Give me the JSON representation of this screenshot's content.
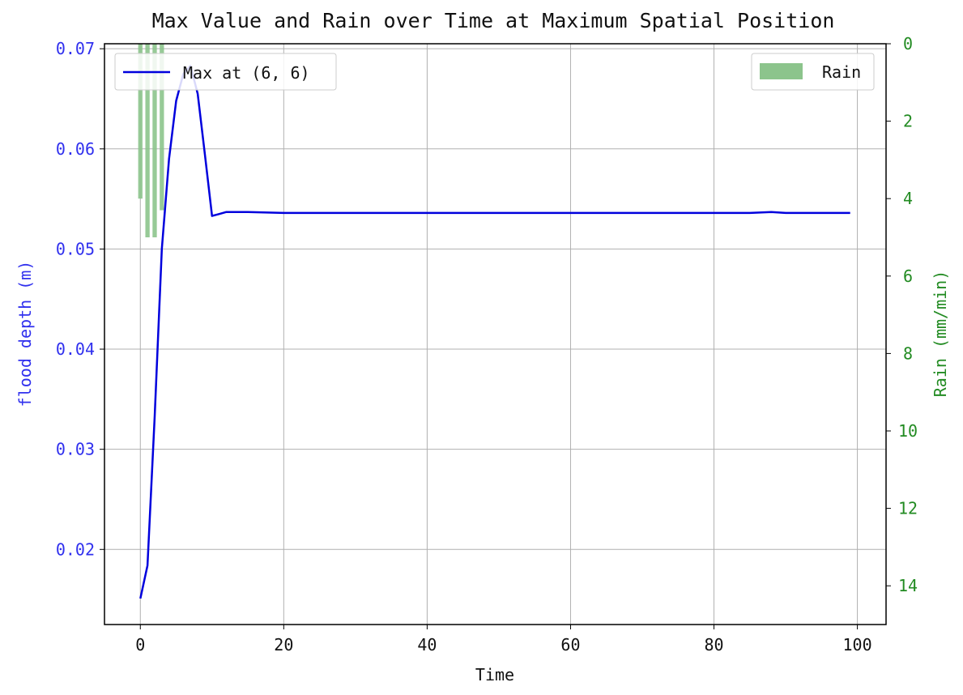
{
  "chart_data": {
    "type": "line",
    "title": "Max Value and Rain over Time at Maximum Spatial Position",
    "xlabel": "Time",
    "ylabel": "flood depth (m)",
    "y2label": "Rain (mm/min)",
    "xlim": [
      -5,
      104
    ],
    "ylim": [
      0.0125,
      0.0705
    ],
    "y2lim": [
      15,
      0
    ],
    "y2_inverted": true,
    "grid": true,
    "x_ticks": [
      0,
      20,
      40,
      60,
      80,
      100
    ],
    "x_tick_labels": [
      "0",
      "20",
      "40",
      "60",
      "80",
      "100"
    ],
    "y_ticks": [
      0.02,
      0.03,
      0.04,
      0.05,
      0.06,
      0.07
    ],
    "y_tick_labels": [
      "0.02",
      "0.03",
      "0.04",
      "0.05",
      "0.06",
      "0.07"
    ],
    "y2_ticks": [
      0,
      2,
      4,
      6,
      8,
      10,
      12,
      14
    ],
    "y2_tick_labels": [
      "0",
      "2",
      "4",
      "6",
      "8",
      "10",
      "12",
      "14"
    ],
    "legend_left": {
      "placement": "upper-left"
    },
    "legend_right": {
      "placement": "upper-right"
    },
    "series": [
      {
        "name": "Max at (6, 6)",
        "color": "#0000dd",
        "x": [
          0,
          1,
          2,
          3,
          4,
          5,
          6,
          7,
          8,
          9,
          10,
          11,
          12,
          13,
          14,
          15,
          20,
          25,
          30,
          35,
          40,
          45,
          50,
          55,
          60,
          65,
          70,
          75,
          80,
          85,
          88,
          90,
          95,
          99
        ],
        "y": [
          0.0151,
          0.0184,
          0.0333,
          0.05,
          0.059,
          0.0648,
          0.0675,
          0.0683,
          0.0655,
          0.0595,
          0.0533,
          0.0535,
          0.0537,
          0.0537,
          0.0537,
          0.0537,
          0.0536,
          0.0536,
          0.0536,
          0.0536,
          0.0536,
          0.0536,
          0.0536,
          0.0536,
          0.0536,
          0.0536,
          0.0536,
          0.0536,
          0.0536,
          0.0536,
          0.0537,
          0.0536,
          0.0536,
          0.0536
        ]
      },
      {
        "name": "Rain",
        "type": "bar",
        "axis": "right",
        "color": "#8cc48c",
        "x": [
          0,
          1,
          2,
          3
        ],
        "values": [
          4.0,
          5.0,
          5.0,
          4.3
        ]
      }
    ]
  }
}
